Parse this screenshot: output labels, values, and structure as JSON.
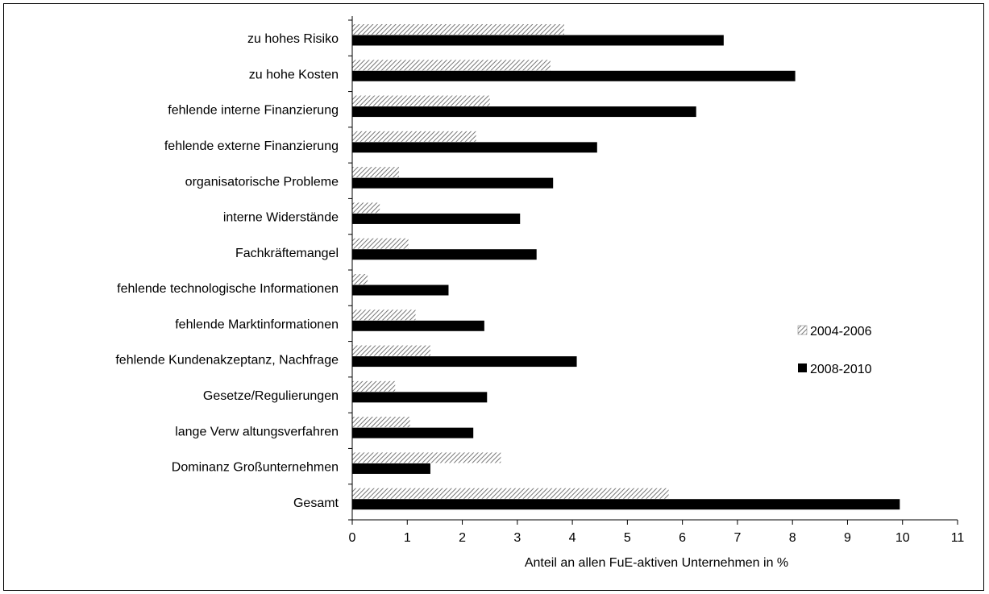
{
  "chart_data": {
    "type": "bar",
    "orientation": "horizontal",
    "categories": [
      "zu hohes Risiko",
      "zu hohe Kosten",
      "fehlende interne Finanzierung",
      "fehlende externe Finanzierung",
      "organisatorische Probleme",
      "interne Widerstände",
      "Fachkräftemangel",
      "fehlende technologische Informationen",
      "fehlende Marktinformationen",
      "fehlende Kundenakzeptanz, Nachfrage",
      "Gesetze/Regulierungen",
      "lange Verw altungsverfahren",
      "Dominanz Großunternehmen",
      "Gesamt"
    ],
    "series": [
      {
        "name": "2004-2006",
        "color": "#888888",
        "pattern": "hatched",
        "values": [
          3.85,
          3.6,
          2.5,
          2.25,
          0.85,
          0.5,
          1.02,
          0.28,
          1.15,
          1.42,
          0.78,
          1.05,
          2.7,
          5.75
        ]
      },
      {
        "name": "2008-2010",
        "color": "#000000",
        "pattern": "solid",
        "values": [
          6.75,
          8.05,
          6.25,
          4.45,
          3.65,
          3.05,
          3.35,
          1.75,
          2.4,
          4.08,
          2.45,
          2.2,
          1.42,
          9.95
        ]
      }
    ],
    "xlabel": "Anteil an allen FuE-aktiven Unternehmen in %",
    "ylabel": "",
    "xlim": [
      0,
      11
    ],
    "xticks": [
      "0",
      "1",
      "2",
      "3",
      "4",
      "5",
      "6",
      "7",
      "8",
      "9",
      "10",
      "11"
    ],
    "grid": false,
    "legend_position": "right"
  }
}
